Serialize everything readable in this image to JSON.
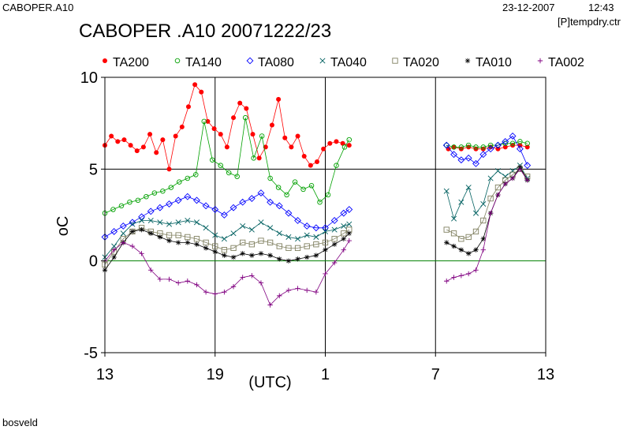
{
  "header": {
    "station_code": "CABOPER.A10",
    "date": "23-12-2007",
    "time": "12:43",
    "file": "[P]tempdry.ctr"
  },
  "title": "CABOPER .A10 20071222/23",
  "footer": "bosveld",
  "chart_data": {
    "type": "line",
    "title": "CABOPER .A10 20071222/23",
    "xlabel": "(UTC)",
    "ylabel": "oC",
    "ylim": [
      -5,
      10
    ],
    "y_ticks": [
      -5,
      0,
      5,
      10
    ],
    "x_hours_range": [
      0,
      24
    ],
    "x_ticks": [
      {
        "h": 0,
        "label": "13"
      },
      {
        "h": 6,
        "label": "19"
      },
      {
        "h": 12,
        "label": "1"
      },
      {
        "h": 18,
        "label": "7"
      },
      {
        "h": 24,
        "label": "13"
      }
    ],
    "x_note": "x values are hours after 13 UTC on 2007-12-22",
    "grid": true,
    "legend_position": "top",
    "reference_lines": [
      {
        "y": 5,
        "color": "#000000"
      },
      {
        "y": 0,
        "color": "#008000"
      }
    ],
    "series": [
      {
        "name": "TA200",
        "color": "#ff0000",
        "marker": "filled-circle",
        "segments": [
          {
            "x": [
              0,
              0.35,
              0.7,
              1.05,
              1.4,
              1.75,
              2.1,
              2.45,
              2.8,
              3.15,
              3.5,
              3.85,
              4.2,
              4.55,
              4.9,
              5.25,
              5.6,
              5.95,
              6.3,
              6.65,
              7.0,
              7.35,
              7.7,
              8.05,
              8.4,
              8.75,
              9.1,
              9.45,
              9.8,
              10.15,
              10.5,
              10.85,
              11.2,
              11.55,
              11.9,
              12.25,
              12.6,
              12.95,
              13.3
            ],
            "y": [
              6.3,
              6.8,
              6.5,
              6.6,
              6.3,
              6.0,
              6.2,
              6.9,
              5.9,
              6.6,
              5.0,
              6.8,
              7.3,
              8.4,
              9.6,
              9.2,
              7.6,
              7.2,
              6.9,
              6.2,
              7.8,
              8.6,
              8.3,
              6.9,
              5.6,
              6.2,
              7.4,
              8.8,
              6.7,
              6.2,
              6.8,
              5.7,
              5.2,
              5.4,
              6.1,
              6.4,
              6.5,
              6.4,
              6.3
            ]
          },
          {
            "x": [
              18.7,
              19.0,
              19.4,
              19.8,
              20.2,
              20.6,
              21.0,
              21.4,
              21.8,
              22.2,
              22.6,
              23.0
            ],
            "y": [
              6.1,
              6.2,
              6.1,
              6.2,
              6.1,
              6.1,
              6.2,
              6.1,
              6.2,
              6.3,
              6.3,
              6.2
            ]
          }
        ]
      },
      {
        "name": "TA140",
        "color": "#00a000",
        "marker": "open-circle",
        "segments": [
          {
            "x": [
              0,
              0.45,
              0.9,
              1.35,
              1.8,
              2.25,
              2.7,
              3.15,
              3.6,
              4.05,
              4.5,
              4.95,
              5.4,
              5.85,
              6.3,
              6.75,
              7.2,
              7.65,
              8.1,
              8.55,
              9.0,
              9.45,
              9.9,
              10.35,
              10.8,
              11.25,
              11.7,
              12.15,
              12.6,
              13.05,
              13.3
            ],
            "y": [
              2.6,
              2.8,
              3.0,
              3.2,
              3.3,
              3.5,
              3.7,
              3.8,
              4.0,
              4.3,
              4.5,
              4.7,
              7.6,
              5.5,
              5.2,
              4.8,
              4.6,
              7.8,
              5.6,
              6.8,
              4.5,
              4.0,
              3.6,
              4.3,
              3.9,
              4.1,
              3.2,
              3.6,
              5.2,
              6.2,
              6.6
            ]
          },
          {
            "x": [
              18.6,
              19.0,
              19.4,
              19.8,
              20.2,
              20.6,
              21.0,
              21.4,
              21.8,
              22.2,
              22.6,
              23.0
            ],
            "y": [
              6.3,
              6.2,
              6.2,
              6.3,
              6.2,
              6.2,
              6.3,
              6.3,
              6.4,
              6.4,
              6.5,
              6.4
            ]
          }
        ]
      },
      {
        "name": "TA080",
        "color": "#0000ff",
        "marker": "open-diamond",
        "segments": [
          {
            "x": [
              0,
              0.5,
              1.0,
              1.5,
              2.0,
              2.5,
              3.0,
              3.5,
              4.0,
              4.5,
              5.0,
              5.5,
              6.0,
              6.5,
              7.0,
              7.5,
              8.0,
              8.5,
              9.0,
              9.5,
              10.0,
              10.5,
              11.0,
              11.5,
              12.0,
              12.5,
              13.0,
              13.3
            ],
            "y": [
              1.3,
              1.6,
              1.9,
              2.1,
              2.4,
              2.7,
              2.9,
              3.1,
              3.3,
              3.5,
              3.3,
              3.0,
              2.8,
              2.5,
              2.9,
              3.2,
              3.4,
              3.7,
              3.2,
              3.0,
              2.6,
              2.2,
              1.9,
              1.8,
              1.8,
              2.2,
              2.6,
              2.8
            ]
          },
          {
            "x": [
              18.6,
              19.0,
              19.4,
              19.8,
              20.2,
              20.6,
              21.0,
              21.4,
              21.8,
              22.2,
              22.6,
              23.0
            ],
            "y": [
              6.3,
              5.8,
              5.5,
              5.6,
              5.3,
              5.8,
              6.1,
              6.3,
              6.5,
              6.8,
              6.1,
              5.2
            ]
          }
        ]
      },
      {
        "name": "TA040",
        "color": "#006060",
        "marker": "x-cross",
        "segments": [
          {
            "x": [
              0,
              0.5,
              1.0,
              1.5,
              2.0,
              2.5,
              3.0,
              3.5,
              4.0,
              4.5,
              5.0,
              5.5,
              6.0,
              6.5,
              7.0,
              7.5,
              8.0,
              8.5,
              9.0,
              9.5,
              10.0,
              10.5,
              11.0,
              11.5,
              12.0,
              12.5,
              13.0,
              13.3
            ],
            "y": [
              0.2,
              0.8,
              1.5,
              2.0,
              2.2,
              2.2,
              2.1,
              2.0,
              2.1,
              2.2,
              2.1,
              1.8,
              1.4,
              1.2,
              1.5,
              1.9,
              1.7,
              2.1,
              1.8,
              1.5,
              1.3,
              1.2,
              1.4,
              1.3,
              1.6,
              1.7,
              1.9,
              2.0
            ]
          },
          {
            "x": [
              18.6,
              19.0,
              19.4,
              19.8,
              20.2,
              20.6,
              21.0,
              21.4,
              21.8,
              22.2,
              22.6,
              23.0
            ],
            "y": [
              3.8,
              2.3,
              3.2,
              4.0,
              2.6,
              3.1,
              4.5,
              4.9,
              4.6,
              4.9,
              5.2,
              4.5
            ]
          }
        ]
      },
      {
        "name": "TA020",
        "color": "#808060",
        "marker": "open-square",
        "segments": [
          {
            "x": [
              0,
              0.5,
              1.0,
              1.5,
              2.0,
              2.5,
              3.0,
              3.5,
              4.0,
              4.5,
              5.0,
              5.5,
              6.0,
              6.5,
              7.0,
              7.5,
              8.0,
              8.5,
              9.0,
              9.5,
              10.0,
              10.5,
              11.0,
              11.5,
              12.0,
              12.5,
              13.0,
              13.3
            ],
            "y": [
              -0.2,
              0.5,
              1.2,
              1.6,
              1.8,
              1.6,
              1.5,
              1.4,
              1.4,
              1.3,
              1.2,
              1.0,
              0.8,
              0.6,
              0.7,
              1.0,
              0.9,
              1.1,
              1.0,
              0.8,
              0.7,
              0.7,
              0.8,
              0.9,
              1.0,
              1.2,
              1.5,
              1.7
            ]
          },
          {
            "x": [
              18.6,
              19.0,
              19.4,
              19.8,
              20.2,
              20.6,
              21.0,
              21.4,
              21.8,
              22.2,
              22.6,
              23.0
            ],
            "y": [
              1.7,
              1.5,
              1.2,
              1.3,
              1.6,
              2.2,
              3.4,
              4.0,
              4.4,
              4.7,
              5.0,
              4.6
            ]
          }
        ]
      },
      {
        "name": "TA010",
        "color": "#000000",
        "marker": "asterisk",
        "segments": [
          {
            "x": [
              0,
              0.5,
              1.0,
              1.5,
              2.0,
              2.5,
              3.0,
              3.5,
              4.0,
              4.5,
              5.0,
              5.5,
              6.0,
              6.5,
              7.0,
              7.5,
              8.0,
              8.5,
              9.0,
              9.5,
              10.0,
              10.5,
              11.0,
              11.5,
              12.0,
              12.5,
              13.0,
              13.3
            ],
            "y": [
              -0.5,
              0.2,
              1.0,
              1.6,
              1.7,
              1.5,
              1.3,
              1.1,
              1.0,
              1.0,
              0.9,
              0.7,
              0.5,
              0.3,
              0.2,
              0.4,
              0.3,
              0.4,
              0.3,
              0.1,
              0.0,
              0.1,
              0.2,
              0.3,
              0.6,
              0.9,
              1.2,
              1.5
            ]
          },
          {
            "x": [
              18.6,
              19.0,
              19.4,
              19.8,
              20.2,
              20.6,
              21.0,
              21.4,
              21.8,
              22.2,
              22.6,
              23.0
            ],
            "y": [
              1.0,
              0.8,
              0.6,
              0.4,
              0.6,
              1.2,
              2.6,
              3.6,
              4.2,
              4.5,
              5.1,
              4.4
            ]
          }
        ]
      },
      {
        "name": "TA002",
        "color": "#800080",
        "marker": "plus",
        "segments": [
          {
            "x": [
              0,
              0.5,
              1.0,
              1.5,
              2.0,
              2.5,
              3.0,
              3.5,
              4.0,
              4.5,
              5.0,
              5.5,
              6.0,
              6.5,
              7.0,
              7.5,
              8.0,
              8.5,
              9.0,
              9.5,
              10.0,
              10.5,
              11.0,
              11.5,
              12.0,
              12.5,
              13.0,
              13.3
            ],
            "y": [
              0.0,
              0.6,
              1.0,
              0.8,
              0.4,
              -0.5,
              -1.0,
              -1.0,
              -1.2,
              -1.1,
              -1.3,
              -1.7,
              -1.8,
              -1.7,
              -1.4,
              -0.9,
              -0.8,
              -1.2,
              -2.4,
              -1.9,
              -1.6,
              -1.5,
              -1.6,
              -1.7,
              -0.7,
              -0.1,
              0.6,
              1.1
            ]
          },
          {
            "x": [
              18.6,
              19.0,
              19.4,
              19.8,
              20.2,
              20.6,
              21.0,
              21.4,
              21.8,
              22.2,
              22.6,
              23.0
            ],
            "y": [
              -1.1,
              -0.9,
              -0.8,
              -0.7,
              -0.5,
              0.6,
              2.6,
              3.6,
              4.2,
              4.5,
              5.0,
              4.4
            ]
          }
        ]
      }
    ]
  }
}
